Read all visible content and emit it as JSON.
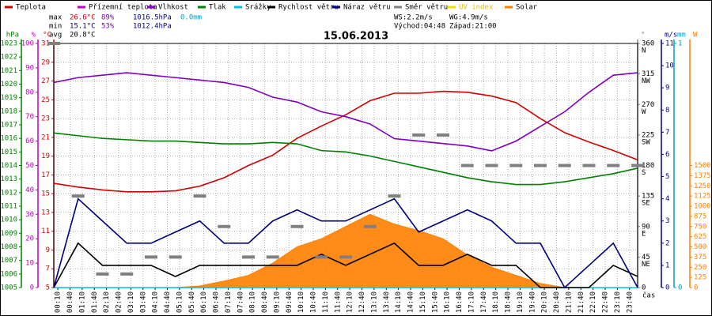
{
  "chart_data": {
    "type": "line",
    "title": "15.06.2013",
    "x_label": "čas",
    "x": [
      0,
      1,
      2,
      3,
      4,
      5,
      6,
      7,
      8,
      9,
      10,
      11,
      12,
      13,
      14,
      15,
      16,
      17,
      18,
      19,
      20,
      21,
      22,
      23,
      24
    ],
    "xlim": [
      0,
      24
    ],
    "xticks": [
      {
        "value": 0.1667,
        "label": "00:10"
      },
      {
        "value": 0.6667,
        "label": "00:40"
      },
      {
        "value": 1.1667,
        "label": "01:10"
      },
      {
        "value": 1.6667,
        "label": "01:40"
      },
      {
        "value": 2.1667,
        "label": "02:10"
      },
      {
        "value": 2.6667,
        "label": "02:40"
      },
      {
        "value": 3.1667,
        "label": "03:10"
      },
      {
        "value": 3.6667,
        "label": "03:40"
      },
      {
        "value": 4.1667,
        "label": "04:10"
      },
      {
        "value": 4.6667,
        "label": "04:40"
      },
      {
        "value": 5.1667,
        "label": "05:10"
      },
      {
        "value": 5.6667,
        "label": "05:40"
      },
      {
        "value": 6.1667,
        "label": "06:10"
      },
      {
        "value": 6.6667,
        "label": "06:40"
      },
      {
        "value": 7.1667,
        "label": "07:10"
      },
      {
        "value": 7.6667,
        "label": "07:40"
      },
      {
        "value": 8.1667,
        "label": "08:10"
      },
      {
        "value": 8.6667,
        "label": "08:40"
      },
      {
        "value": 9.1667,
        "label": "09:10"
      },
      {
        "value": 9.6667,
        "label": "09:40"
      },
      {
        "value": 10.1667,
        "label": "10:10"
      },
      {
        "value": 10.6667,
        "label": "10:40"
      },
      {
        "value": 11.1667,
        "label": "11:10"
      },
      {
        "value": 11.6667,
        "label": "11:40"
      },
      {
        "value": 12.1667,
        "label": "12:10"
      },
      {
        "value": 12.6667,
        "label": "12:40"
      },
      {
        "value": 13.1667,
        "label": "13:10"
      },
      {
        "value": 13.6667,
        "label": "13:40"
      },
      {
        "value": 14.1667,
        "label": "14:10"
      },
      {
        "value": 14.6667,
        "label": "14:40"
      },
      {
        "value": 15.1667,
        "label": "15:10"
      },
      {
        "value": 15.6667,
        "label": "15:40"
      },
      {
        "value": 16.1667,
        "label": "16:10"
      },
      {
        "value": 16.6667,
        "label": "16:40"
      },
      {
        "value": 17.1667,
        "label": "17:10"
      },
      {
        "value": 17.6667,
        "label": "17:40"
      },
      {
        "value": 18.1667,
        "label": "18:10"
      },
      {
        "value": 18.6667,
        "label": "18:40"
      },
      {
        "value": 19.1667,
        "label": "19:10"
      },
      {
        "value": 19.6667,
        "label": "19:40"
      },
      {
        "value": 20.1667,
        "label": "20:10"
      },
      {
        "value": 20.6667,
        "label": "20:40"
      },
      {
        "value": 21.1667,
        "label": "21:10"
      },
      {
        "value": 21.6667,
        "label": "21:40"
      },
      {
        "value": 22.1667,
        "label": "22:10"
      },
      {
        "value": 22.6667,
        "label": "22:40"
      },
      {
        "value": 23.1667,
        "label": "23:10"
      },
      {
        "value": 23.6667,
        "label": "23:40"
      }
    ],
    "grid": true,
    "axes": [
      {
        "id": "y3",
        "unit": "hPa",
        "side": "left",
        "color": "#008000",
        "lim": [
          1005,
          1023
        ],
        "ticks": [
          1005,
          1006,
          1007,
          1008,
          1009,
          1010,
          1011,
          1012,
          1013,
          1014,
          1015,
          1016,
          1017,
          1018,
          1019,
          1020,
          1021,
          1022,
          1023
        ]
      },
      {
        "id": "y2",
        "unit": "%",
        "side": "left",
        "color": "#c000c0",
        "lim": [
          0,
          100
        ],
        "ticks": [
          0,
          10,
          20,
          30,
          40,
          50,
          60,
          70,
          80,
          90,
          100
        ]
      },
      {
        "id": "y",
        "unit": "°C",
        "side": "left",
        "color": "#d00000",
        "lim": [
          5,
          31
        ],
        "ticks": [
          5,
          7,
          9,
          11,
          13,
          15,
          17,
          19,
          21,
          23,
          25,
          27,
          29,
          31
        ]
      },
      {
        "id": "y4",
        "unit": "°",
        "side": "right",
        "color": "#808080",
        "lim": [
          0,
          360
        ],
        "ticks": [
          0,
          45,
          90,
          135,
          180,
          225,
          270,
          315,
          360
        ],
        "compass": [
          null,
          "NE",
          "E",
          "SE",
          "S",
          "SW",
          "W",
          "NW",
          "N"
        ]
      },
      {
        "id": "y5",
        "unit": "m/s",
        "side": "right",
        "color": "#000080",
        "lim": [
          0,
          11
        ],
        "ticks": [
          0,
          1,
          2,
          3,
          4,
          5,
          6,
          7,
          8,
          9,
          10,
          11
        ]
      },
      {
        "id": "y6",
        "unit": "mm",
        "side": "right",
        "color": "#00a0c0",
        "lim": [
          0,
          1
        ],
        "ticks": [
          0,
          1
        ]
      },
      {
        "id": "y7",
        "unit": "W",
        "side": "right",
        "color": "#ff8000",
        "lim": [
          0,
          3000
        ],
        "ticks": [
          0,
          125,
          250,
          375,
          500,
          625,
          750,
          875,
          1000,
          1125,
          1250,
          1375,
          1500
        ]
      }
    ],
    "series": [
      {
        "name": "Teplota",
        "color": "#d00000",
        "axis": "y",
        "style": "line",
        "values": [
          16.1,
          15.7,
          15.4,
          15.2,
          15.2,
          15.3,
          15.8,
          16.7,
          18,
          19.1,
          20.9,
          22.2,
          23.4,
          24.9,
          25.7,
          25.7,
          25.9,
          25.8,
          25.4,
          24.7,
          23,
          21.5,
          20.5,
          19.6,
          18.6
        ]
      },
      {
        "name": "Přízemní teplota",
        "color": "#c000c0",
        "axis": "y",
        "style": "line",
        "values": [
          null,
          null,
          null,
          null,
          null,
          null,
          null,
          null,
          null,
          null,
          null,
          null,
          null,
          null,
          null,
          null,
          null,
          null,
          null,
          null,
          null,
          null,
          null,
          null,
          null
        ]
      },
      {
        "name": "Vlhkost",
        "color": "#8000c0",
        "axis": "y2",
        "style": "line",
        "values": [
          84,
          86,
          87,
          88,
          87,
          86,
          85,
          84,
          82,
          78,
          76,
          72,
          70,
          67,
          61,
          60,
          59,
          58,
          56,
          60,
          66,
          72,
          80,
          87,
          88
        ]
      },
      {
        "name": "Tlak",
        "color": "#008000",
        "axis": "y3",
        "style": "line",
        "values": [
          1016.4,
          1016.2,
          1016,
          1015.9,
          1015.8,
          1015.8,
          1015.7,
          1015.6,
          1015.6,
          1015.7,
          1015.6,
          1015.1,
          1015,
          1014.7,
          1014.3,
          1013.9,
          1013.5,
          1013.1,
          1012.8,
          1012.6,
          1012.6,
          1012.8,
          1013.1,
          1013.4,
          1013.8
        ]
      },
      {
        "name": "Srážky",
        "color": "#00c0e0",
        "axis": "y6",
        "style": "line",
        "values": [
          0,
          0,
          0,
          0,
          0,
          0,
          0,
          0,
          0,
          0,
          0,
          0,
          0,
          0,
          0,
          0,
          0,
          0,
          0,
          0,
          0,
          0,
          0,
          0,
          0
        ]
      },
      {
        "name": "Rychlost větru",
        "color": "#000000",
        "axis": "y5",
        "style": "line",
        "values": [
          0,
          2,
          1,
          1,
          1,
          0.5,
          1,
          1,
          1,
          1,
          1,
          1.5,
          1,
          1.5,
          2,
          1,
          1,
          1.5,
          1,
          1,
          0,
          0,
          0,
          1,
          0.5
        ]
      },
      {
        "name": "Náraz větru",
        "color": "#000080",
        "axis": "y5",
        "style": "line",
        "values": [
          0,
          4,
          3,
          2,
          2,
          2.5,
          3,
          2,
          2,
          3,
          3.5,
          3,
          3,
          3.5,
          4,
          2.5,
          3,
          3.5,
          3,
          2,
          2,
          0,
          1,
          2,
          0
        ]
      },
      {
        "name": "Směr větru",
        "color": "#808080",
        "axis": "y4",
        "style": "dash",
        "values": [
          360,
          135,
          20,
          20,
          45,
          45,
          135,
          90,
          45,
          45,
          90,
          45,
          45,
          90,
          135,
          225,
          225,
          180,
          180,
          180,
          180,
          180,
          180,
          180,
          180
        ]
      },
      {
        "name": "UV index",
        "color": "#f0e000",
        "axis": "y7",
        "style": "line",
        "values": [
          null,
          null,
          null,
          null,
          null,
          null,
          null,
          null,
          null,
          null,
          null,
          null,
          null,
          null,
          null,
          null,
          null,
          null,
          null,
          null,
          null,
          null,
          null,
          null,
          null
        ]
      },
      {
        "name": "Solar",
        "color": "#ff8000",
        "axis": "y7",
        "style": "area",
        "values": [
          0,
          0,
          0,
          0,
          0,
          0,
          20,
          80,
          150,
          300,
          500,
          600,
          750,
          900,
          780,
          700,
          600,
          400,
          250,
          150,
          50,
          0,
          0,
          0,
          0
        ]
      }
    ],
    "stats": [
      {
        "label": "max",
        "items": [
          {
            "text": "26.6°C",
            "color": "#d00000"
          },
          {
            "text": "89%",
            "color": "#8000c0"
          },
          {
            "text": "1016.5hPa",
            "color": "#000080"
          },
          {
            "text": "0.0mm",
            "color": "#00a0c0"
          }
        ]
      },
      {
        "label": "min",
        "items": [
          {
            "text": "15.1°C",
            "color": "#000080"
          },
          {
            "text": "53%",
            "color": "#8000c0"
          },
          {
            "text": "1012.4hPa",
            "color": "#000080"
          }
        ]
      },
      {
        "label": "avg",
        "items": [
          {
            "text": "20.8°C",
            "color": "#000000"
          }
        ]
      }
    ],
    "wind_info": [
      [
        "WS:2.2m/s",
        "WG:4.9m/s"
      ],
      [
        "Východ:04:48",
        "Západ:21:00"
      ]
    ]
  }
}
